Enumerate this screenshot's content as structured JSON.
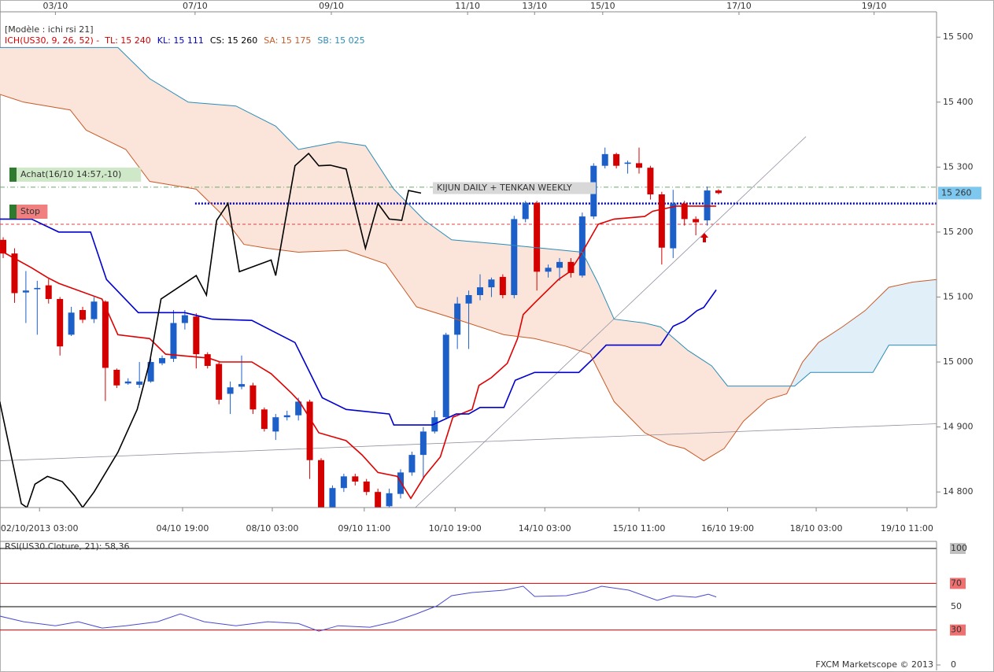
{
  "chart_data": [
    {
      "type": "candlestick",
      "model": "[Modèle : ichi rsi 21]",
      "legend": [
        {
          "text": "ICH(US30, 9, 26, 52) -",
          "color": "#d40000"
        },
        {
          "text": "TL: 15 240",
          "color": "#d40000"
        },
        {
          "text": "KL: 15 111",
          "color": "#0000c8"
        },
        {
          "text": "CS: 15 260",
          "color": "#000000"
        },
        {
          "text": "SA: 15 175",
          "color": "#c85a28"
        },
        {
          "text": "SB: 15 025",
          "color": "#2a8cb8"
        }
      ],
      "up_color": "#1d5fc8",
      "down_color": "#d40000",
      "open": [
        15188,
        15167,
        15107,
        15112,
        15118,
        15097,
        15042,
        15080,
        15066,
        15093,
        14988,
        14967,
        14965,
        14970,
        14998,
        15005,
        15060,
        15070,
        15012,
        14997,
        14951,
        14962,
        14964,
        14927,
        14893,
        14915,
        14918,
        14939,
        14849,
        14775,
        14806,
        14824,
        14816,
        14800,
        14778,
        14797,
        14830,
        14857,
        14893,
        14915,
        15042,
        15090,
        15103,
        15115,
        15131,
        15103,
        15220,
        15245,
        15139,
        15145,
        15154,
        15133,
        15224,
        15302,
        15320,
        15305,
        15306,
        15299,
        15258,
        15175,
        15244,
        15220,
        15218,
        15264
      ],
      "high": [
        15192,
        15175,
        15140,
        15125,
        15128,
        15100,
        15085,
        15085,
        15100,
        15095,
        14990,
        14975,
        15000,
        15005,
        15010,
        15080,
        15080,
        15075,
        15015,
        15000,
        14970,
        15010,
        14968,
        14930,
        14920,
        14925,
        14945,
        14942,
        14852,
        14810,
        14828,
        14828,
        14820,
        14805,
        14805,
        14835,
        14862,
        14900,
        14925,
        15045,
        15100,
        15110,
        15135,
        15130,
        15135,
        15225,
        15248,
        15248,
        15150,
        15160,
        15160,
        15230,
        15306,
        15330,
        15322,
        15310,
        15330,
        15302,
        15262,
        15265,
        15248,
        15224,
        15270,
        15266
      ],
      "low": [
        15160,
        15091,
        15060,
        15042,
        15090,
        15010,
        15040,
        15060,
        15060,
        14940,
        14960,
        14965,
        14960,
        14968,
        14995,
        15000,
        15050,
        14990,
        14990,
        14935,
        14920,
        14958,
        14920,
        14893,
        14880,
        14910,
        14910,
        14820,
        14770,
        14772,
        14800,
        14810,
        14795,
        14772,
        14775,
        14790,
        14825,
        14820,
        14890,
        14912,
        15020,
        15020,
        15095,
        15100,
        15098,
        15098,
        15215,
        15110,
        15130,
        15125,
        15130,
        15130,
        15220,
        15298,
        15298,
        15290,
        15290,
        15250,
        15150,
        15160,
        15210,
        15195,
        15210,
        15258
      ],
      "close": [
        15167,
        15106,
        15110,
        15114,
        15097,
        15024,
        15076,
        15065,
        15093,
        14991,
        14964,
        14970,
        14970,
        15000,
        15006,
        15060,
        15072,
        15012,
        14994,
        14942,
        14961,
        14966,
        14927,
        14897,
        14915,
        14918,
        14939,
        14849,
        14775,
        14806,
        14824,
        14816,
        14800,
        14775,
        14798,
        14830,
        14857,
        14893,
        14915,
        15042,
        15090,
        15103,
        15115,
        15127,
        15103,
        15220,
        15245,
        15139,
        15145,
        15154,
        15137,
        15224,
        15302,
        15320,
        15302,
        15307,
        15299,
        15258,
        15176,
        15244,
        15220,
        15215,
        15264,
        15260
      ],
      "lines": [
        {
          "color": "#e00000",
          "width": 1.6,
          "x": [
            -0.3,
            2.5,
            3.9,
            4.9,
            8.7,
            10.1,
            12.9,
            14.3,
            18.1,
            19.1,
            21.9,
            23.6,
            25.4,
            26.1,
            27.8,
            30.2,
            31.6,
            33.0,
            34.7,
            35.9,
            37.1,
            38.5,
            39.6,
            41.3,
            41.9,
            43.0,
            44.4,
            45.3,
            45.8,
            46.8,
            48.9,
            49.9,
            51.0,
            52.4,
            53.8,
            56.5,
            57.2,
            59.3,
            60.7,
            62.8
          ],
          "values": [
            15172,
            15145,
            15130,
            15121,
            15097,
            15042,
            15036,
            15012,
            15006,
            15000,
            15000,
            14982,
            14952,
            14939,
            14891,
            14879,
            14857,
            14830,
            14824,
            14790,
            14824,
            14854,
            14915,
            14927,
            14964,
            14976,
            14998,
            15036,
            15073,
            15091,
            15127,
            15139,
            15169,
            15212,
            15220,
            15224,
            15232,
            15240,
            15240,
            15240
          ]
        },
        {
          "color": "#0000d0",
          "width": 1.6,
          "x": [
            -0.3,
            2.5,
            4.9,
            7.7,
            9.1,
            11.9,
            16.0,
            18.4,
            21.9,
            25.7,
            28.1,
            30.2,
            34.0,
            34.4,
            37.8,
            39.9,
            41.0,
            42.0,
            44.1,
            45.1,
            46.8,
            50.7,
            52.0,
            53.1,
            57.9,
            59.0,
            60.0,
            61.1,
            61.7,
            62.8
          ],
          "values": [
            15220,
            15220,
            15200,
            15200,
            15127,
            15076,
            15076,
            15066,
            15064,
            15030,
            14945,
            14927,
            14920,
            14903,
            14903,
            14920,
            14920,
            14930,
            14930,
            14972,
            14984,
            14984,
            15006,
            15026,
            15026,
            15055,
            15063,
            15079,
            15084,
            15111
          ]
        },
        {
          "color": "#c85a28",
          "width": 1,
          "x": [
            -0.3,
            1.8,
            5.9,
            7.3,
            10.8,
            12.9,
            17.0,
            19.1,
            21.2,
            23.3,
            26.0,
            30.2,
            33.7,
            36.4,
            39.9,
            44.1,
            46.8,
            49.6,
            51.7,
            53.8,
            56.5,
            58.6,
            60.0,
            61.7,
            63.5,
            65.2,
            67.3,
            69.0,
            70.4,
            71.8,
            73.9,
            75.9,
            78.0,
            80.1,
            82.2
          ],
          "values": [
            15412,
            15400,
            15388,
            15357,
            15327,
            15278,
            15266,
            15230,
            15181,
            15175,
            15169,
            15172,
            15151,
            15085,
            15066,
            15042,
            15036,
            15024,
            15012,
            14939,
            14891,
            14873,
            14867,
            14848,
            14867,
            14909,
            14942,
            14951,
            15000,
            15030,
            15054,
            15079,
            15115,
            15123,
            15127
          ]
        },
        {
          "color": "#2a8cb8",
          "width": 1,
          "x": [
            -0.3,
            10.1,
            12.9,
            16.3,
            20.5,
            24.0,
            26.0,
            29.5,
            31.9,
            34.4,
            37.1,
            39.5,
            44.1,
            51.0,
            52.4,
            53.8,
            56.5,
            57.9,
            60.3,
            62.4,
            63.8,
            69.7,
            71.1,
            76.6,
            78.0,
            82.2
          ],
          "values": [
            15484,
            15484,
            15436,
            15400,
            15394,
            15363,
            15327,
            15339,
            15333,
            15266,
            15218,
            15188,
            15181,
            15169,
            15121,
            15066,
            15060,
            15054,
            15018,
            14994,
            14963,
            14963,
            14984,
            14984,
            15026,
            15026
          ]
        },
        {
          "color": "#000000",
          "width": 1.6,
          "x": [
            -0.3,
            1.6,
            2.1,
            2.8,
            3.9,
            5.2,
            6.3,
            7.0,
            8.0,
            10.1,
            11.8,
            12.9,
            13.9,
            17.0,
            17.9,
            18.8,
            19.8,
            20.8,
            23.6,
            24.0,
            25.7,
            26.9,
            27.8,
            28.8,
            30.2,
            31.9,
            33.0,
            34.0,
            35.1,
            35.7,
            36.8
          ],
          "values": [
            14939,
            14782,
            14776,
            14812,
            14824,
            14816,
            14794,
            14776,
            14800,
            14861,
            14927,
            15000,
            15097,
            15133,
            15103,
            15218,
            15244,
            15139,
            15157,
            15133,
            15302,
            15321,
            15302,
            15303,
            15297,
            15175,
            15244,
            15220,
            15218,
            15264,
            15260
          ]
        }
      ],
      "cloud_fill": [
        "#fbe5da",
        "#e1eff9"
      ],
      "levels": [
        {
          "label": "Achat(16/10 14:57,-10)",
          "value": 15269,
          "color": "#6aaa6a",
          "box": "#cfe8c8",
          "text_color": "#7a9a7a"
        },
        {
          "label": "Stop",
          "value": 15212,
          "color": "#e04040",
          "box": "#f08080",
          "text_color": "#ffffff"
        }
      ],
      "annotation": {
        "text": "KIJUN DAILY + TENKAN WEEKLY",
        "value": 15244,
        "x": [
          16.9,
          82.2
        ],
        "color": "#0000b0"
      },
      "trendlines": [
        {
          "x": [
            36.3,
            70.7
          ],
          "values": [
            14776,
            15347
          ],
          "color": "#9090a0"
        },
        {
          "x": [
            -0.3,
            82.2
          ],
          "values": [
            14848,
            14905
          ],
          "color": "#9090a0"
        }
      ],
      "last_price": {
        "value": 15260,
        "label": "15 260",
        "color": "#7ec8f0"
      },
      "xlim": [
        -0.28,
        82.2
      ],
      "ylim": [
        14776,
        15539
      ],
      "yticks": [
        {
          "value": 15500,
          "label": "15 500"
        },
        {
          "value": 15400,
          "label": "15 400"
        },
        {
          "value": 15300,
          "label": "15 300"
        },
        {
          "value": 15200,
          "label": "15 200"
        },
        {
          "value": 15100,
          "label": "15 100"
        },
        {
          "value": 15000,
          "label": "15 000"
        },
        {
          "value": 14900,
          "label": "14 900"
        },
        {
          "value": 14800,
          "label": "14 800"
        }
      ],
      "xticks_top": [
        {
          "value": 4.6,
          "label": "03/10"
        },
        {
          "value": 16.9,
          "label": "07/10"
        },
        {
          "value": 28.9,
          "label": "09/10"
        },
        {
          "value": 40.9,
          "label": "11/10"
        },
        {
          "value": 46.8,
          "label": "13/10"
        },
        {
          "value": 52.8,
          "label": "15/10"
        },
        {
          "value": 64.8,
          "label": "17/10"
        },
        {
          "value": 76.7,
          "label": "19/10"
        }
      ],
      "xticks": [
        {
          "value": 3.2,
          "label": "02/10/2013 03:00"
        },
        {
          "value": 15.8,
          "label": "04/10 19:00"
        },
        {
          "value": 23.7,
          "label": "08/10 03:00"
        },
        {
          "value": 31.8,
          "label": "09/10 11:00"
        },
        {
          "value": 39.8,
          "label": "10/10 19:00"
        },
        {
          "value": 47.7,
          "label": "14/10 03:00"
        },
        {
          "value": 56.0,
          "label": "15/10 11:00"
        },
        {
          "value": 63.8,
          "label": "16/10 19:00"
        },
        {
          "value": 71.6,
          "label": "18/10 03:00"
        },
        {
          "value": 79.6,
          "label": "19/10 11:00"
        }
      ]
    },
    {
      "type": "line",
      "title": "RSI(US30.Cloture, 21): 58,36",
      "color": "#4a4ad0",
      "x": [
        -0.3,
        1.8,
        4.6,
        6.6,
        8.7,
        10.8,
        13.6,
        15.6,
        17.7,
        20.5,
        23.3,
        26.0,
        27.8,
        29.5,
        32.3,
        34.4,
        36.4,
        38.2,
        39.5,
        41.3,
        44.1,
        45.8,
        46.8,
        49.6,
        51.3,
        52.7,
        55.1,
        57.6,
        59.0,
        61.0,
        62.1,
        62.8
      ],
      "values": [
        41.9,
        37.1,
        33.7,
        37.1,
        31.7,
        33.7,
        37.1,
        43.9,
        37.1,
        33.7,
        37.1,
        35.6,
        29.0,
        33.7,
        32.4,
        37.1,
        43.9,
        50.7,
        59.5,
        62.2,
        64.2,
        67.6,
        58.8,
        59.5,
        62.9,
        67.6,
        64.2,
        55.4,
        59.5,
        58.1,
        60.8,
        58.4
      ],
      "xlim": [
        -0.28,
        82.2
      ],
      "ylim": [
        -4.7,
        106.1
      ],
      "yticks": [
        0,
        30,
        50,
        70,
        100
      ],
      "grid_colors": [
        "none",
        "#d40000",
        "#000000",
        "#d40000",
        "#000000"
      ],
      "label_bg": [
        "none",
        "#f07070",
        "none",
        "#f07070",
        "#c0c0c0"
      ]
    }
  ],
  "footer": "FXCM Marketscope © 2013"
}
